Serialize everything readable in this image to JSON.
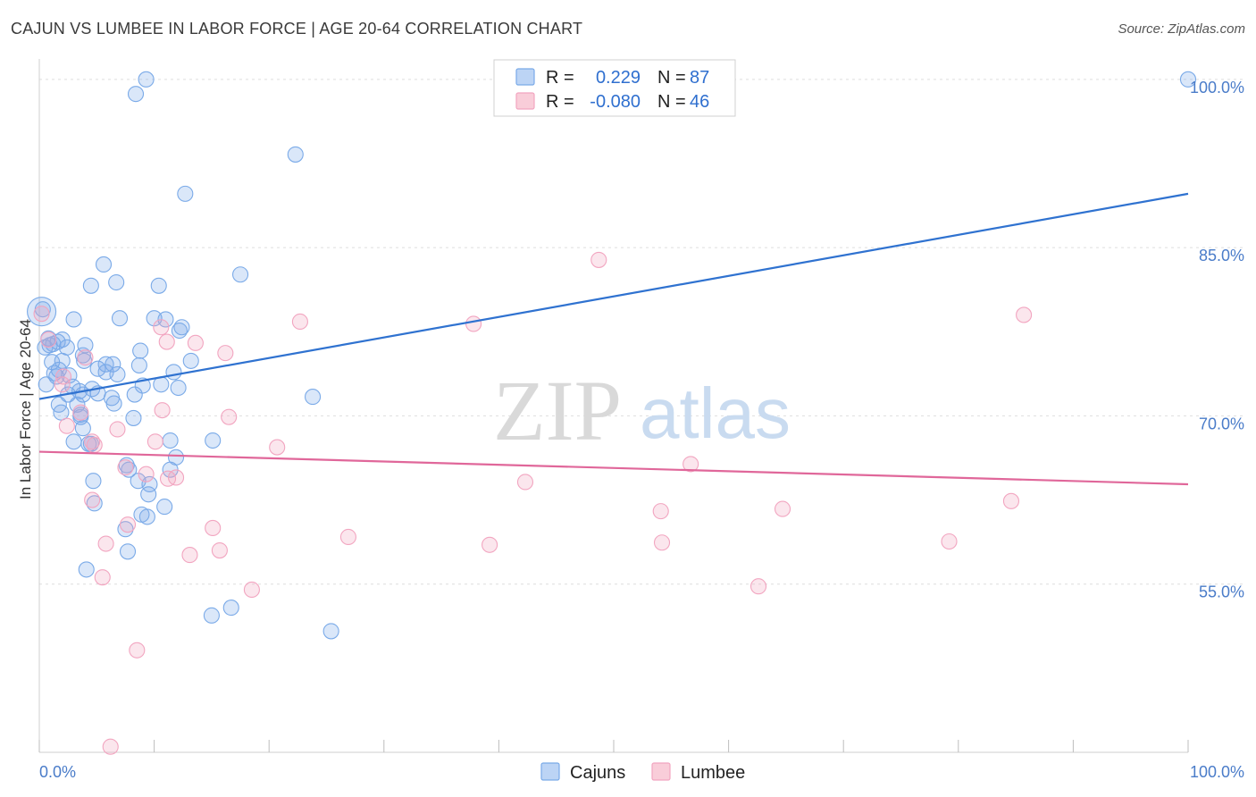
{
  "chart_data": {
    "type": "scatter",
    "title": "CAJUN VS LUMBEE IN LABOR FORCE | AGE 20-64 CORRELATION CHART",
    "source": "Source: ZipAtlas.com",
    "ylabel": "In Labor Force | Age 20-64",
    "xlabel": "",
    "xlim": [
      0,
      100
    ],
    "ylim": [
      40,
      101.5
    ],
    "x_tick_labels": [
      "0.0%",
      "100.0%"
    ],
    "y_ticks": [
      55,
      70,
      85,
      100
    ],
    "y_tick_labels": [
      "55.0%",
      "70.0%",
      "85.0%",
      "100.0%"
    ],
    "grid": true,
    "watermark": {
      "zip": "ZIP",
      "atlas": "atlas"
    },
    "legend": {
      "cajun": {
        "r_label": "R =",
        "r_value": "0.229",
        "n_label": "N =",
        "n_value": "87"
      },
      "lumbee": {
        "r_label": "R =",
        "r_value": "-0.080",
        "n_label": "N =",
        "n_value": "46"
      }
    },
    "series": [
      {
        "name": "Cajuns",
        "color": "#7aaae8",
        "line_color": "#2f72d0",
        "trend": {
          "x": [
            0,
            100
          ],
          "y": [
            71.5,
            89.8
          ]
        },
        "points": [
          [
            9.3,
            100
          ],
          [
            8.4,
            98.7
          ],
          [
            22.3,
            93.3
          ],
          [
            12.7,
            89.8
          ],
          [
            5.6,
            83.5
          ],
          [
            17.5,
            82.6
          ],
          [
            6.7,
            81.9
          ],
          [
            4.5,
            81.6
          ],
          [
            10.4,
            81.6
          ],
          [
            0.2,
            79.3
          ],
          [
            3.0,
            78.6
          ],
          [
            7.0,
            78.7
          ],
          [
            10.0,
            78.7
          ],
          [
            11.0,
            78.6
          ],
          [
            12.4,
            77.9
          ],
          [
            12.2,
            77.6
          ],
          [
            0.8,
            76.9
          ],
          [
            1.6,
            76.6
          ],
          [
            2.0,
            76.8
          ],
          [
            0.9,
            76.3
          ],
          [
            1.2,
            76.4
          ],
          [
            0.5,
            76.1
          ],
          [
            2.4,
            76.1
          ],
          [
            3.8,
            75.4
          ],
          [
            8.8,
            75.8
          ],
          [
            1.1,
            74.8
          ],
          [
            2.0,
            74.9
          ],
          [
            3.9,
            74.9
          ],
          [
            5.8,
            74.6
          ],
          [
            6.4,
            74.6
          ],
          [
            8.7,
            74.5
          ],
          [
            13.2,
            74.9
          ],
          [
            5.1,
            74.2
          ],
          [
            1.7,
            74.1
          ],
          [
            1.3,
            73.8
          ],
          [
            1.5,
            73.5
          ],
          [
            2.6,
            73.6
          ],
          [
            5.8,
            73.9
          ],
          [
            6.8,
            73.7
          ],
          [
            11.7,
            73.9
          ],
          [
            0.6,
            72.8
          ],
          [
            2.9,
            72.6
          ],
          [
            3.5,
            72.2
          ],
          [
            4.6,
            72.4
          ],
          [
            9.0,
            72.7
          ],
          [
            10.6,
            72.8
          ],
          [
            2.5,
            71.9
          ],
          [
            3.8,
            71.9
          ],
          [
            5.1,
            72.0
          ],
          [
            8.3,
            71.9
          ],
          [
            23.8,
            71.7
          ],
          [
            1.7,
            71.0
          ],
          [
            3.3,
            71.0
          ],
          [
            6.3,
            71.6
          ],
          [
            3.6,
            70.1
          ],
          [
            3.6,
            69.9
          ],
          [
            8.2,
            69.8
          ],
          [
            3.8,
            68.9
          ],
          [
            3.0,
            67.7
          ],
          [
            4.3,
            67.5
          ],
          [
            15.1,
            67.8
          ],
          [
            11.4,
            67.8
          ],
          [
            4.5,
            67.5
          ],
          [
            11.9,
            66.3
          ],
          [
            7.8,
            65.2
          ],
          [
            7.6,
            65.6
          ],
          [
            8.6,
            64.2
          ],
          [
            11.4,
            65.2
          ],
          [
            4.7,
            64.2
          ],
          [
            9.6,
            63.9
          ],
          [
            9.5,
            63.0
          ],
          [
            4.8,
            62.2
          ],
          [
            10.9,
            61.9
          ],
          [
            8.9,
            61.2
          ],
          [
            9.4,
            61.0
          ],
          [
            7.5,
            59.9
          ],
          [
            7.7,
            57.9
          ],
          [
            4.1,
            56.3
          ],
          [
            15.0,
            52.2
          ],
          [
            16.7,
            52.9
          ],
          [
            25.4,
            50.8
          ],
          [
            100,
            100
          ],
          [
            0.3,
            79.5
          ],
          [
            4.0,
            76.3
          ],
          [
            6.5,
            71.1
          ],
          [
            1.9,
            70.3
          ],
          [
            12.1,
            72.5
          ]
        ]
      },
      {
        "name": "Lumbee",
        "color": "#f2a5c0",
        "line_color": "#e0679a",
        "trend": {
          "x": [
            0,
            100
          ],
          "y": [
            66.8,
            63.9
          ]
        },
        "points": [
          [
            48.7,
            83.9
          ],
          [
            0.2,
            79.1
          ],
          [
            22.7,
            78.4
          ],
          [
            37.8,
            78.2
          ],
          [
            85.7,
            79.0
          ],
          [
            10.6,
            77.9
          ],
          [
            0.8,
            76.8
          ],
          [
            13.6,
            76.5
          ],
          [
            11.1,
            76.6
          ],
          [
            16.2,
            75.6
          ],
          [
            4.0,
            75.2
          ],
          [
            2.1,
            73.5
          ],
          [
            3.6,
            70.3
          ],
          [
            10.7,
            70.5
          ],
          [
            16.5,
            69.9
          ],
          [
            2.4,
            69.1
          ],
          [
            6.8,
            68.8
          ],
          [
            10.1,
            67.7
          ],
          [
            4.6,
            67.7
          ],
          [
            20.7,
            67.2
          ],
          [
            4.8,
            67.4
          ],
          [
            56.7,
            65.7
          ],
          [
            7.5,
            65.4
          ],
          [
            9.3,
            64.8
          ],
          [
            11.9,
            64.5
          ],
          [
            11.2,
            64.4
          ],
          [
            42.3,
            64.1
          ],
          [
            4.6,
            62.5
          ],
          [
            84.6,
            62.4
          ],
          [
            54.1,
            61.5
          ],
          [
            64.7,
            61.7
          ],
          [
            7.7,
            60.3
          ],
          [
            15.1,
            60.0
          ],
          [
            26.9,
            59.2
          ],
          [
            5.8,
            58.6
          ],
          [
            39.2,
            58.5
          ],
          [
            54.2,
            58.7
          ],
          [
            79.2,
            58.8
          ],
          [
            15.7,
            58.0
          ],
          [
            13.1,
            57.6
          ],
          [
            5.5,
            55.6
          ],
          [
            18.5,
            54.5
          ],
          [
            62.6,
            54.8
          ],
          [
            8.5,
            49.1
          ],
          [
            6.2,
            40.5
          ],
          [
            2.0,
            72.8
          ]
        ]
      }
    ],
    "legend_labels": [
      "Cajuns",
      "Lumbee"
    ]
  }
}
